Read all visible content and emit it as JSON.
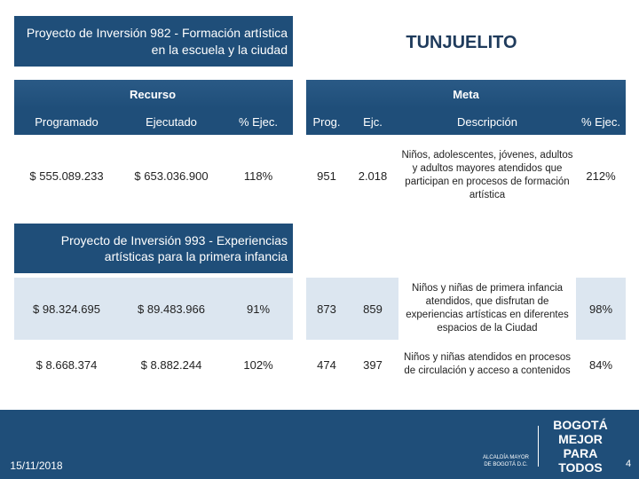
{
  "header": {
    "project_1": "Proyecto de Inversión  982 - Formación artística en la escuela y la ciudad",
    "location": "TUNJUELITO"
  },
  "table": {
    "recurso": "Recurso",
    "meta": "Meta",
    "columns": [
      "Programado",
      "Ejecutado",
      "% Ejec.",
      "Prog.",
      "Ejc.",
      "Descripción",
      "% Ejec."
    ],
    "rows_1": [
      [
        "$ 555.089.233",
        "$ 653.036.900",
        "118%",
        "951",
        "2.018",
        "Niños, adolescentes, jóvenes, adultos y adultos mayores atendidos que participan en procesos de formación artística",
        "212%"
      ]
    ],
    "project_2": "Proyecto de Inversión  993 - Experiencias artísticas para la primera infancia",
    "rows_2": [
      [
        "$ 98.324.695",
        "$ 89.483.966",
        "91%",
        "873",
        "859",
        "Niños y niñas de primera infancia atendidos, que disfrutan de experiencias artísticas en diferentes espacios de la Ciudad",
        "98%"
      ],
      [
        "$ 8.668.374",
        "$ 8.882.244",
        "102%",
        "474",
        "397",
        "Niños y niñas atendidos en procesos de circulación y acceso a contenidos",
        "84%"
      ]
    ]
  },
  "footer": {
    "date": "15/11/2018",
    "page": "4",
    "logo_1": "ALCALDÍA MAYOR DE BOGOTÁ D.C.",
    "logo_2": "BOGOTÁ MEJOR PARA TODOS"
  }
}
